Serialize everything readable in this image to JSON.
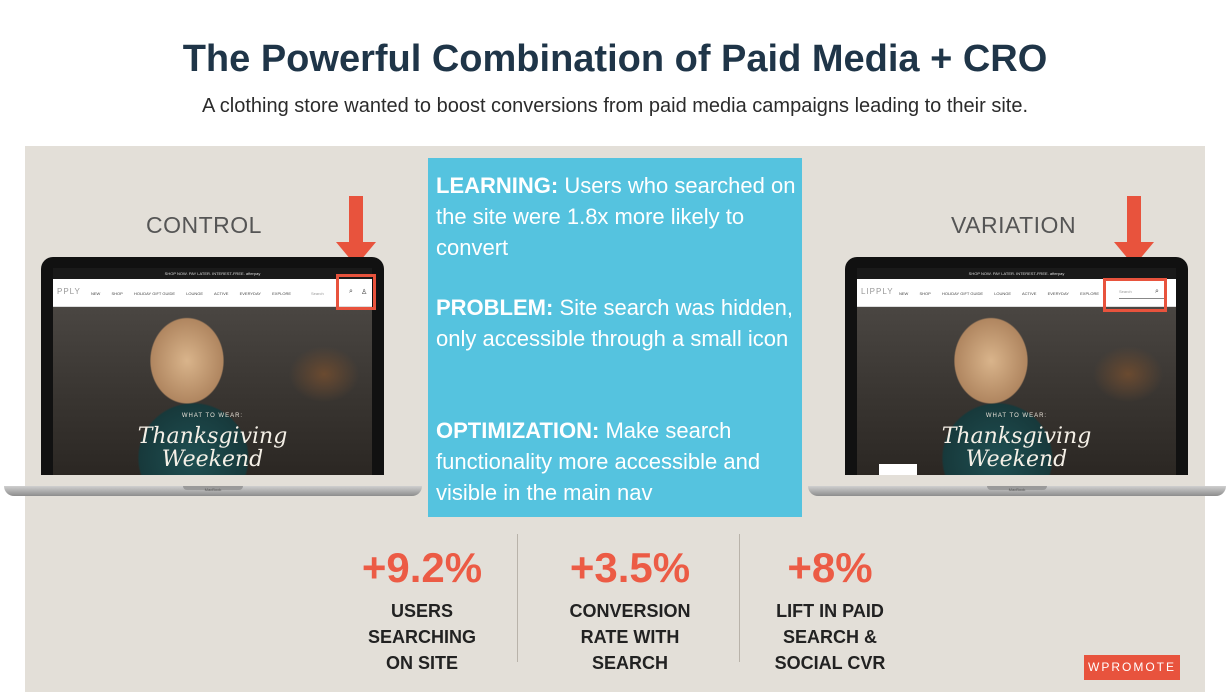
{
  "header": {
    "title": "The Powerful Combination of Paid Media + CRO",
    "subtitle": "A clothing store wanted to boost conversions from paid media campaigns leading to their site."
  },
  "control": {
    "label": "CONTROL",
    "promo_text": "SHOP NOW. PAY LATER. INTEREST-FREE. afterpay",
    "logo_fragment": "PPLY",
    "nav_items": [
      "NEW",
      "SHOP",
      "HOLIDAY GIFT GUIDE",
      "LOUNGE",
      "ACTIVE",
      "EVERYDAY",
      "EXPLORE"
    ],
    "search_placeholder": "Search",
    "hero_small": "WHAT TO WEAR:",
    "hero_big_1": "Thanksgiving",
    "hero_big_2": "Weekend",
    "brand": "MacBook"
  },
  "variation": {
    "label": "VARIATION",
    "promo_text": "SHOP NOW. PAY LATER. INTEREST-FREE. afterpay",
    "logo_fragment": "LIPPLY",
    "nav_items": [
      "NEW",
      "SHOP",
      "HOLIDAY GIFT GUIDE",
      "LOUNGE",
      "ACTIVE",
      "EVERYDAY",
      "EXPLORE"
    ],
    "search_placeholder": "Search",
    "hero_small": "WHAT TO WEAR:",
    "hero_big_1": "Thanksgiving",
    "hero_big_2": "Weekend",
    "brand": "MacBook"
  },
  "info": {
    "learning_label": "LEARNING:",
    "learning_text": " Users who searched on the site were 1.8x more likely to convert",
    "problem_label": "PROBLEM:",
    "problem_text": " Site search was hidden, only accessible through a small icon",
    "optimization_label": "OPTIMIZATION:",
    "optimization_text": " Make search functionality more accessible and visible in the main nav"
  },
  "stats": [
    {
      "value": "+9.2%",
      "label": "USERS\nSEARCHING\nON SITE"
    },
    {
      "value": "+3.5%",
      "label": "CONVERSION\nRATE WITH\nSEARCH"
    },
    {
      "value": "+8%",
      "label": "LIFT IN PAID\nSEARCH &\nSOCIAL CVR"
    }
  ],
  "brand_logo": "WPROMOTE",
  "colors": {
    "accent": "#e8533d",
    "info_box": "#55c3df",
    "panel": "#e3dfd8",
    "title": "#1f3548"
  }
}
